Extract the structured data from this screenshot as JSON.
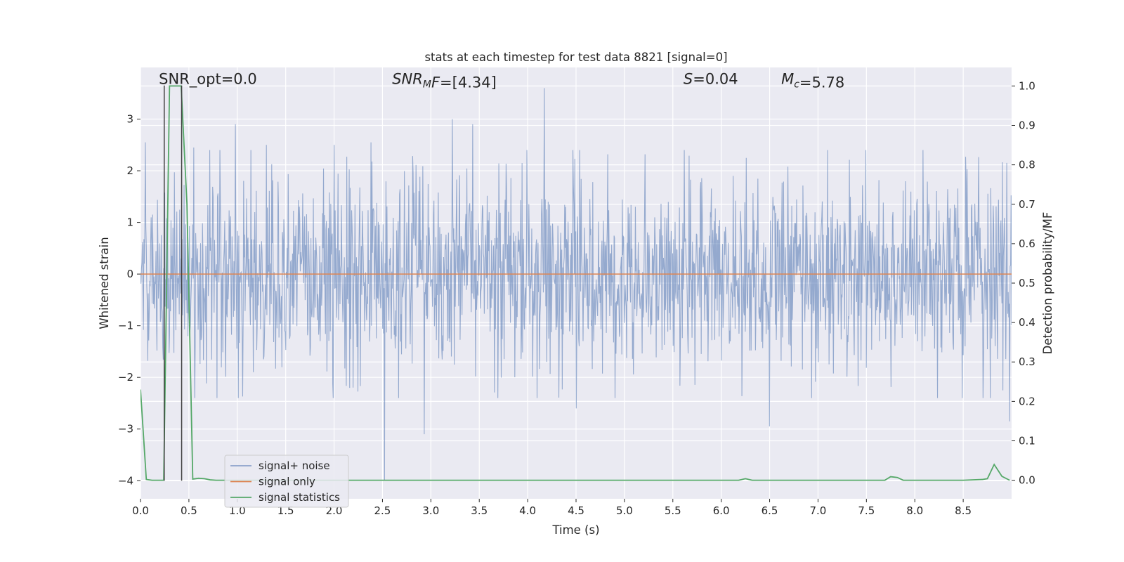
{
  "chart_data": {
    "type": "line",
    "title": "stats at each timestep for test data 8821 [signal=0]",
    "xlabel": "Time (s)",
    "ylabel_left": "Whitened strain",
    "ylabel_right": "Detection probability/MF",
    "xlim": [
      0.0,
      9.0
    ],
    "ylim_left": [
      -4.35,
      4.0
    ],
    "ylim_right": [
      -0.047,
      1.047
    ],
    "xticks": [
      0.0,
      0.5,
      1.0,
      1.5,
      2.0,
      2.5,
      3.0,
      3.5,
      4.0,
      4.5,
      5.0,
      5.5,
      6.0,
      6.5,
      7.0,
      7.5,
      8.0,
      8.5
    ],
    "xtick_labels": [
      "0.0",
      "0.5",
      "1.0",
      "1.5",
      "2.0",
      "2.5",
      "3.0",
      "3.5",
      "4.0",
      "4.5",
      "5.0",
      "5.5",
      "6.0",
      "6.5",
      "7.0",
      "7.5",
      "8.0",
      "8.5"
    ],
    "yticks_left": [
      -4,
      -3,
      -2,
      -1,
      0,
      1,
      2,
      3
    ],
    "ytick_labels_left": [
      "−4",
      "−3",
      "−2",
      "−1",
      "0",
      "1",
      "2",
      "3"
    ],
    "yticks_right": [
      0.0,
      0.1,
      0.2,
      0.3,
      0.4,
      0.5,
      0.6,
      0.7,
      0.8,
      0.9,
      1.0
    ],
    "ytick_labels_right": [
      "0.0",
      "0.1",
      "0.2",
      "0.3",
      "0.4",
      "0.5",
      "0.6",
      "0.7",
      "0.8",
      "0.9",
      "1.0"
    ],
    "grid": true,
    "series": [
      {
        "name": "signal+ noise",
        "axis": "left",
        "color": "#4c72b0",
        "style": "noise",
        "n_samples": 1800,
        "sigma": 0.95,
        "peaks": [
          [
            0.05,
            2.55
          ],
          [
            0.55,
            2.45
          ],
          [
            0.98,
            2.9
          ],
          [
            1.3,
            2.5
          ],
          [
            2.0,
            2.5
          ],
          [
            2.38,
            2.55
          ],
          [
            2.52,
            -4.0
          ],
          [
            2.93,
            -3.1
          ],
          [
            3.22,
            3.0
          ],
          [
            3.43,
            2.9
          ],
          [
            4.17,
            3.6
          ],
          [
            4.5,
            -2.6
          ],
          [
            6.5,
            -2.95
          ],
          [
            8.78,
            -2.4
          ],
          [
            8.98,
            -2.85
          ]
        ]
      },
      {
        "name": "signal only",
        "axis": "left",
        "color": "#dd8452",
        "x": [
          0.0,
          9.0
        ],
        "y": [
          0.0,
          0.0
        ]
      },
      {
        "name": "signal statistics",
        "axis": "right",
        "color": "#55a868",
        "x": [
          0.0,
          0.06,
          0.12,
          0.18,
          0.24,
          0.3,
          0.36,
          0.42,
          0.48,
          0.54,
          0.6,
          0.66,
          0.72,
          0.78,
          1.0,
          2.0,
          3.0,
          4.0,
          5.0,
          6.0,
          6.18,
          6.25,
          6.32,
          6.45,
          7.0,
          7.6,
          7.69,
          7.75,
          7.82,
          7.88,
          8.0,
          8.5,
          8.7,
          8.75,
          8.82,
          8.9,
          8.98
        ],
        "y": [
          0.23,
          0.002,
          0.0,
          0.0,
          0.0,
          1.0,
          1.0,
          1.0,
          0.7,
          0.003,
          0.005,
          0.004,
          0.001,
          0.0,
          0.0,
          0.0,
          0.0,
          0.0,
          0.0,
          0.0,
          0.0,
          0.004,
          0.0,
          0.0,
          0.0,
          0.0,
          0.0,
          0.009,
          0.007,
          0.0,
          0.0,
          0.0,
          0.002,
          0.004,
          0.04,
          0.01,
          0.0
        ]
      }
    ],
    "vlines": [
      {
        "x": 0.245,
        "y_from": -4.0,
        "y_to": 3.65,
        "axis": "left",
        "color": "#404040"
      },
      {
        "x": 0.425,
        "y_from": -4.0,
        "y_to": 3.65,
        "axis": "left",
        "color": "#404040"
      }
    ],
    "annotations": [
      {
        "id": "snr-opt",
        "x": 0.19,
        "y": 3.68,
        "base": "SNR_opt=0.0",
        "italic": false
      },
      {
        "id": "snr-mf",
        "x": 2.6,
        "y": 3.68,
        "base": "SNR",
        "sub": "M",
        "after": "F",
        "tail": "=[4.34]",
        "italic": true
      },
      {
        "id": "s-value",
        "x": 5.61,
        "y": 3.68,
        "base": "S",
        "tail": "=0.04",
        "italic": true
      },
      {
        "id": "mc-value",
        "x": 6.62,
        "y": 3.68,
        "base": "M",
        "sub": "c",
        "tail": "=5.78",
        "italic": true
      }
    ],
    "legend": {
      "position": "lower-left",
      "entries": [
        "signal+ noise",
        "signal only",
        "signal statistics"
      ]
    }
  }
}
